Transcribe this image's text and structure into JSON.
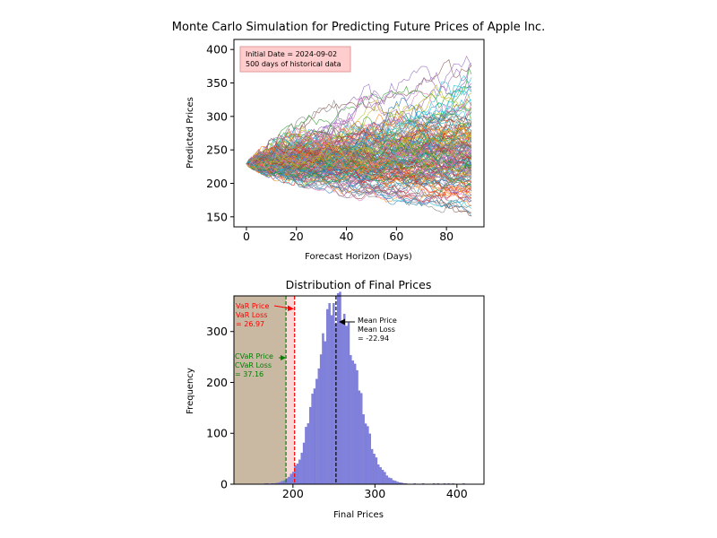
{
  "chart_data": [
    {
      "type": "line",
      "title": "Monte Carlo Simulation for Predicting Future Prices of Apple Inc.",
      "xlabel": "Forecast Horizon (Days)",
      "ylabel": "Predicted Prices",
      "xlim": [
        -5,
        95
      ],
      "ylim": [
        135,
        415
      ],
      "x_ticks": [
        0,
        20,
        40,
        60,
        80
      ],
      "y_ticks": [
        150,
        200,
        250,
        300,
        350,
        400
      ],
      "annotation": [
        "Initial Date = 2024-09-02",
        "500 days of historical data"
      ],
      "start_price": 229,
      "horizon_days": 90,
      "envelope": {
        "day": [
          0,
          10,
          20,
          30,
          40,
          50,
          60,
          70,
          80,
          90
        ],
        "upper": [
          232,
          270,
          295,
          315,
          335,
          350,
          360,
          375,
          385,
          405
        ],
        "lower": [
          226,
          205,
          195,
          188,
          178,
          170,
          165,
          160,
          155,
          150
        ]
      },
      "series_count": 10000,
      "grid": false
    },
    {
      "type": "bar",
      "title": "Distribution of Final Prices",
      "xlabel": "Final Prices",
      "ylabel": "Frequency",
      "xlim": [
        128,
        433
      ],
      "ylim": [
        0,
        370
      ],
      "x_ticks": [
        200,
        300,
        400
      ],
      "y_ticks": [
        0,
        100,
        200,
        300
      ],
      "histogram_peak": {
        "price": 251,
        "frequency": 357
      },
      "vlines": {
        "var_price": 202,
        "cvar_price": 191.5,
        "mean_price": 252.5
      },
      "annotations": {
        "var": [
          "VaR Price",
          "VaR Loss",
          " = 26.97"
        ],
        "cvar": [
          "CVaR Price",
          "CVaR Loss",
          " = 37.16"
        ],
        "mean": [
          "Mean Price",
          "Mean Loss",
          " = -22.94"
        ]
      },
      "colors": {
        "bars": "#8080dd",
        "var": "#ff0000",
        "cvar": "#008000",
        "mean": "#000000",
        "tail": "#c9b9a3"
      }
    }
  ]
}
